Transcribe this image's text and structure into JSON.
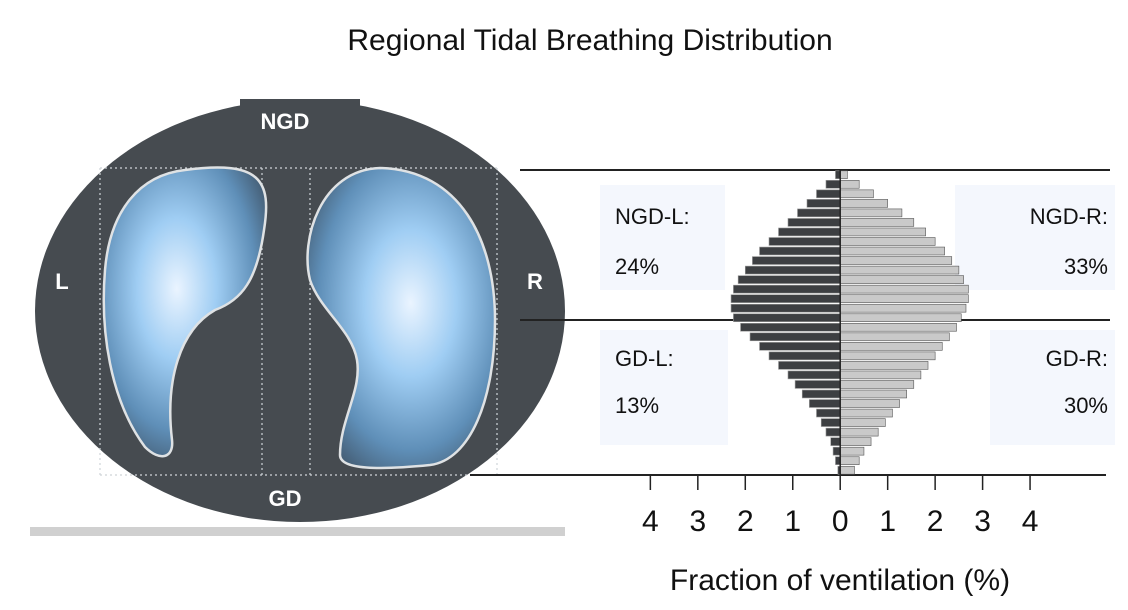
{
  "title": "Regional Tidal Breathing Distribution",
  "image_labels": {
    "top": "NGD",
    "left": "L",
    "right": "R",
    "bottom": "GD"
  },
  "chart_data": {
    "type": "butterfly",
    "xlabel": "Fraction of ventilation (%)",
    "xlim": [
      -7.8,
      5.6
    ],
    "xticks": [
      {
        "value": -4,
        "label": "4"
      },
      {
        "value": -3,
        "label": "3"
      },
      {
        "value": -2,
        "label": "2"
      },
      {
        "value": -1,
        "label": "1"
      },
      0,
      1,
      2,
      3,
      4
    ],
    "series": [
      {
        "side": "left",
        "color": "#3d3f42",
        "values": [
          0.1,
          0.3,
          0.5,
          0.7,
          0.9,
          1.1,
          1.3,
          1.5,
          1.7,
          1.85,
          2.0,
          2.15,
          2.25,
          2.3,
          2.3,
          2.25,
          2.1,
          1.9,
          1.7,
          1.5,
          1.3,
          1.1,
          0.95,
          0.8,
          0.65,
          0.5,
          0.4,
          0.3,
          0.2,
          0.15,
          0.1,
          0.05
        ]
      },
      {
        "side": "right",
        "color": "#c9c9c9",
        "values": [
          0.15,
          0.4,
          0.7,
          1.0,
          1.3,
          1.55,
          1.8,
          2.0,
          2.2,
          2.35,
          2.5,
          2.6,
          2.7,
          2.7,
          2.65,
          2.55,
          2.45,
          2.3,
          2.15,
          2.0,
          1.85,
          1.7,
          1.55,
          1.4,
          1.25,
          1.1,
          0.95,
          0.8,
          0.65,
          0.5,
          0.4,
          0.3
        ]
      }
    ],
    "quadrants": {
      "labels": [
        "NGD-L:",
        "NGD-R:",
        "GD-L:",
        "GD-R:"
      ],
      "values": [
        24,
        33,
        13,
        30
      ],
      "value_labels": [
        "24%",
        "33%",
        "13%",
        "30%"
      ]
    }
  }
}
